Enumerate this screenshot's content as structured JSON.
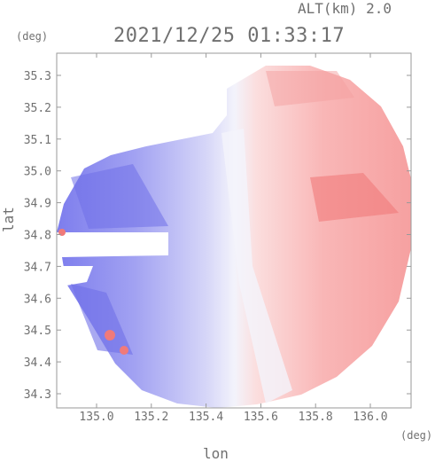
{
  "header": {
    "altitude_label": "ALT(km) 2.0",
    "timestamp": "2021/12/25 01:33:17"
  },
  "axes": {
    "y_unit": "(deg)",
    "x_unit": "(deg)",
    "y_label": "lat",
    "x_label": "lon",
    "y_ticks": [
      "35.3",
      "35.2",
      "35.1",
      "35.0",
      "34.9",
      "34.8",
      "34.7",
      "34.6",
      "34.5",
      "34.4",
      "34.3"
    ],
    "x_ticks": [
      "135.0",
      "135.2",
      "135.4",
      "135.6",
      "135.8",
      "136.0"
    ]
  },
  "colors": {
    "approaching": "#7f7fef",
    "receding": "#f58c8c",
    "frame": "#9a9a9a",
    "text": "#707070"
  }
}
